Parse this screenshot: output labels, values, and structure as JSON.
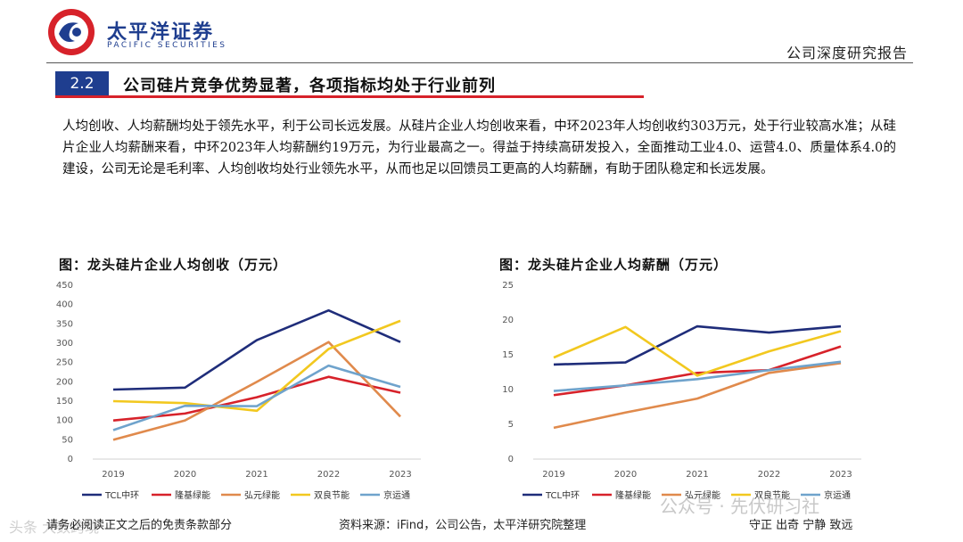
{
  "header": {
    "brand_cn": "太平洋证券",
    "brand_en": "PACIFIC SECURITIES",
    "report_type": "公司深度研究报告"
  },
  "section": {
    "number": "2.2",
    "title": "公司硅片竞争优势显著，各项指标均处于行业前列"
  },
  "body": {
    "paragraph": "人均创收、人均薪酬均处于领先水平，利于公司长远发展。从硅片企业人均创收来看，中环2023年人均创收约303万元，处于行业较高水准；从硅片企业人均薪酬来看，中环2023年人均薪酬约19万元，为行业最高之一。得益于持续高研发投入，全面推动工业4.0、运营4.0、质量体系4.0的建设，公司无论是毛利率、人均创收均处行业领先水平，从而也足以回馈员工更高的人均薪酬，有助于团队稳定和长远发展。"
  },
  "colors": {
    "brand": "#1f3e8f",
    "accent_red": "#d7222a",
    "series": [
      "#1f2d7a",
      "#d7222a",
      "#e08a4c",
      "#f2c81f",
      "#6fa3cc"
    ]
  },
  "chart_data": [
    {
      "type": "line",
      "title": "图：龙头硅片企业人均创收（万元）",
      "categories": [
        "2019",
        "2020",
        "2021",
        "2022",
        "2023"
      ],
      "ylim": [
        0,
        450
      ],
      "yticks": [
        0,
        50,
        100,
        150,
        200,
        250,
        300,
        350,
        400,
        450
      ],
      "series": [
        {
          "name": "TCL中环",
          "values": [
            180,
            185,
            308,
            385,
            303
          ]
        },
        {
          "name": "隆基绿能",
          "values": [
            100,
            118,
            160,
            213,
            172
          ]
        },
        {
          "name": "弘元绿能",
          "values": [
            50,
            100,
            200,
            303,
            110
          ]
        },
        {
          "name": "双良节能",
          "values": [
            150,
            145,
            125,
            285,
            358
          ]
        },
        {
          "name": "京运通",
          "values": [
            75,
            138,
            137,
            242,
            187
          ]
        }
      ],
      "legend_position": "bottom"
    },
    {
      "type": "line",
      "title": "图：龙头硅片企业人均薪酬（万元）",
      "categories": [
        "2019",
        "2020",
        "2021",
        "2022",
        "2023"
      ],
      "ylim": [
        0,
        25
      ],
      "yticks": [
        0,
        5,
        10,
        15,
        20,
        25
      ],
      "series": [
        {
          "name": "TCL中环",
          "values": [
            13.6,
            13.9,
            19.1,
            18.2,
            19.1
          ]
        },
        {
          "name": "隆基绿能",
          "values": [
            9.2,
            10.6,
            12.4,
            12.8,
            16.2
          ]
        },
        {
          "name": "弘元绿能",
          "values": [
            4.5,
            6.7,
            8.7,
            12.4,
            13.8
          ]
        },
        {
          "name": "双良节能",
          "values": [
            14.6,
            19.0,
            12.0,
            15.5,
            18.4
          ]
        },
        {
          "name": "京运通",
          "values": [
            9.8,
            10.6,
            11.5,
            12.8,
            14.0
          ]
        }
      ],
      "legend_position": "bottom"
    }
  ],
  "footer": {
    "disclaimer": "请务必阅读正文之后的免责条款部分",
    "source": "资料来源：iFind，公司公告，太平洋研究院整理",
    "authors": "守正 出奇 宁静 致远"
  },
  "watermark": {
    "wechat": "公众号 · 先伏研习社",
    "corner": "头条 大数跨境"
  }
}
